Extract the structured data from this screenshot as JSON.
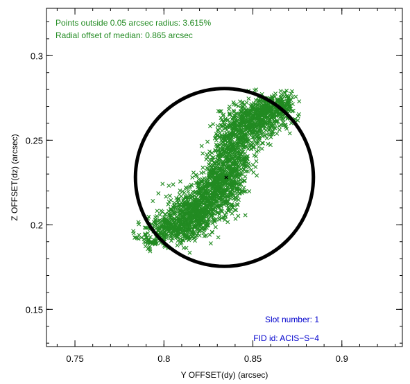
{
  "chart_data": {
    "type": "scatter",
    "title": "",
    "xlabel": "Y OFFSET(dy) (arcsec)",
    "ylabel": "Z OFFSET(dz) (arcsec)",
    "xlim": [
      0.734,
      0.934
    ],
    "ylim": [
      0.128,
      0.328
    ],
    "x_ticks": [
      0.75,
      0.8,
      0.85,
      0.9
    ],
    "x_tick_labels": [
      "0.75",
      "0.8",
      "0.85",
      "0.9"
    ],
    "y_ticks": [
      0.15,
      0.2,
      0.25,
      0.3
    ],
    "y_tick_labels": [
      "0.15",
      "0.2",
      "0.25",
      "0.3"
    ],
    "grid": false,
    "colors": {
      "points": "#228B22",
      "stats_text": "#228B22",
      "info_text": "#0000CD",
      "circle": "#000000",
      "median": "#000000"
    },
    "series": [
      {
        "marker": "x",
        "color": "#228B22",
        "clusters": [
          {
            "center": [
              0.807,
              0.198
            ],
            "spread": [
              0.008,
              0.004
            ],
            "count": 380
          },
          {
            "center": [
              0.818,
              0.208
            ],
            "spread": [
              0.008,
              0.005
            ],
            "count": 420
          },
          {
            "center": [
              0.827,
              0.218
            ],
            "spread": [
              0.007,
              0.006
            ],
            "count": 380
          },
          {
            "center": [
              0.834,
              0.229
            ],
            "spread": [
              0.006,
              0.007
            ],
            "count": 320
          },
          {
            "center": [
              0.838,
              0.243
            ],
            "spread": [
              0.006,
              0.007
            ],
            "count": 280
          },
          {
            "center": [
              0.846,
              0.258
            ],
            "spread": [
              0.008,
              0.006
            ],
            "count": 380
          },
          {
            "center": [
              0.856,
              0.266
            ],
            "spread": [
              0.008,
              0.004
            ],
            "count": 320
          },
          {
            "center": [
              0.864,
              0.272
            ],
            "spread": [
              0.005,
              0.003
            ],
            "count": 150
          },
          {
            "center": [
              0.793,
              0.19
            ],
            "spread": [
              0.004,
              0.003
            ],
            "count": 50
          }
        ],
        "outliers": [
          [
            0.786,
            0.194
          ],
          [
            0.791,
            0.195
          ],
          [
            0.783,
            0.195
          ],
          [
            0.792,
            0.187
          ],
          [
            0.872,
            0.279
          ],
          [
            0.866,
            0.277
          ],
          [
            0.876,
            0.273
          ],
          [
            0.828,
            0.222
          ],
          [
            0.845,
            0.226
          ]
        ]
      }
    ],
    "median_point": [
      0.835,
      0.228
    ],
    "circle": {
      "center": [
        0.834,
        0.228
      ],
      "radius": 0.05
    },
    "annotations": {
      "stats_line1": "Points outside 0.05 arcsec radius: 3.615%",
      "stats_line2": "Radial offset of median: 0.865 arcsec",
      "slot_label": "Slot number: 1",
      "fid_label": "FID id: ACIS−S−4"
    }
  }
}
